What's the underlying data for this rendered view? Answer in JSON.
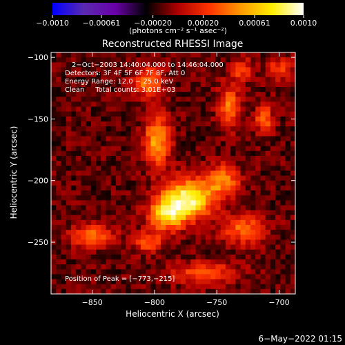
{
  "chart_data": {
    "type": "heatmap",
    "title": "Reconstructed RHESSI Image",
    "xlabel": "Heliocentric X (arcsec)",
    "ylabel": "Heliocentric Y (arcsec)",
    "xlim": [
      -883,
      -687
    ],
    "ylim": [
      -292,
      -96
    ],
    "x_ticks": [
      -850,
      -800,
      -750,
      -700
    ],
    "x_tick_labels": [
      "−850",
      "−800",
      "−750",
      "−700"
    ],
    "y_ticks": [
      -250,
      -200,
      -150,
      -100
    ],
    "y_tick_labels": [
      "−250",
      "−200",
      "−150",
      "−100"
    ],
    "colorbar": {
      "range": [
        -0.001,
        0.001
      ],
      "ticks": [
        -0.001,
        -0.00061,
        -0.0002,
        0.0002,
        0.00061,
        0.001
      ],
      "tick_labels": [
        "−0.0010",
        "−0.00061",
        "−0.00020",
        "0.00020",
        "0.00061",
        "0.0010"
      ],
      "unit_label": "(photons cm⁻² s⁻¹ asec⁻²)"
    },
    "peak": [
      -773,
      -215
    ],
    "sources": [
      {
        "x": -773,
        "y": -215,
        "sx": 14,
        "sy": 11,
        "amp": 1.0
      },
      {
        "x": -790,
        "y": -228,
        "sx": 10,
        "sy": 9,
        "amp": 0.75
      },
      {
        "x": -798,
        "y": -168,
        "sx": 7,
        "sy": 14,
        "amp": 0.7
      },
      {
        "x": -745,
        "y": -200,
        "sx": 9,
        "sy": 9,
        "amp": 0.55
      },
      {
        "x": -728,
        "y": -240,
        "sx": 12,
        "sy": 8,
        "amp": 0.5
      },
      {
        "x": -805,
        "y": -120,
        "sx": 8,
        "sy": 8,
        "amp": 0.55
      },
      {
        "x": -740,
        "y": -140,
        "sx": 6,
        "sy": 12,
        "amp": 0.55
      },
      {
        "x": -712,
        "y": -150,
        "sx": 5,
        "sy": 8,
        "amp": 0.5
      },
      {
        "x": -760,
        "y": -275,
        "sx": 18,
        "sy": 6,
        "amp": 0.45
      },
      {
        "x": -850,
        "y": -245,
        "sx": 12,
        "sy": 6,
        "amp": 0.5
      },
      {
        "x": -805,
        "y": -250,
        "sx": 8,
        "sy": 6,
        "amp": 0.45
      },
      {
        "x": -700,
        "y": -110,
        "sx": 7,
        "sy": 6,
        "amp": 0.4
      },
      {
        "x": -730,
        "y": -110,
        "sx": 6,
        "sy": 6,
        "amp": 0.4
      }
    ]
  },
  "annotations": {
    "time_range": "2−Oct−2003 14:40:04.000 to 14:46:04.000",
    "detectors": "Detectors: 3F 4F 5F 6F 7F 8F, Att 0",
    "energy": "Energy Range: 12.0 − 25.0 keV",
    "clean": "Clean     Total counts: 3.01E+03",
    "peak_position": "Position of Peak = [−773,−215]"
  },
  "footer_date": "6−May−2022 01:15",
  "colors": {
    "background": "#000000",
    "colormap": [
      "#0000ff",
      "#5a2ab0",
      "#6a00a8",
      "#000000",
      "#b00000",
      "#ff3300",
      "#ff9900",
      "#ffee00",
      "#ffffff"
    ]
  }
}
